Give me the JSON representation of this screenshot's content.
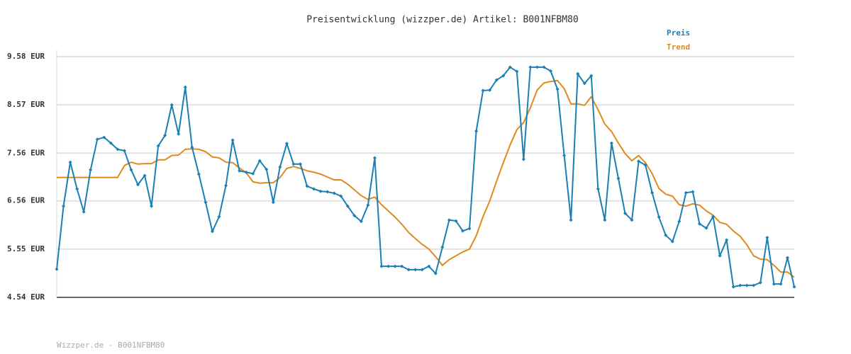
{
  "chart_data": {
    "type": "line",
    "title": "Preisentwicklung (wizzper.de) Artikel: B001NFBM80",
    "footer": "Wizzper.de - B001NFBM80",
    "ylim": [
      4.54,
      9.58
    ],
    "yticks": [
      {
        "value": 4.54,
        "label": "4.54 EUR"
      },
      {
        "value": 5.55,
        "label": "5.55 EUR"
      },
      {
        "value": 6.56,
        "label": "6.56 EUR"
      },
      {
        "value": 7.56,
        "label": "7.56 EUR"
      },
      {
        "value": 8.57,
        "label": "8.57 EUR"
      },
      {
        "value": 9.58,
        "label": "9.58 EUR"
      }
    ],
    "grid": true,
    "legend": "top-right",
    "series": [
      {
        "name": "Preis",
        "color": "#1a7fb5",
        "markers": true,
        "values": [
          5.13,
          6.45,
          7.37,
          6.81,
          6.33,
          7.21,
          7.85,
          7.89,
          7.77,
          7.64,
          7.61,
          7.21,
          6.9,
          7.09,
          6.45,
          7.71,
          7.93,
          8.57,
          7.96,
          8.94,
          7.68,
          7.12,
          6.53,
          5.92,
          6.23,
          6.88,
          7.83,
          7.19,
          7.16,
          7.13,
          7.4,
          7.22,
          6.53,
          7.27,
          7.76,
          7.33,
          7.33,
          6.87,
          6.81,
          6.76,
          6.75,
          6.72,
          6.66,
          6.45,
          6.25,
          6.13,
          6.47,
          7.46,
          5.19,
          5.19,
          5.19,
          5.19,
          5.12,
          5.12,
          5.12,
          5.19,
          5.04,
          5.59,
          6.16,
          6.14,
          5.93,
          5.98,
          8.02,
          8.87,
          8.88,
          9.09,
          9.18,
          9.36,
          9.27,
          7.43,
          9.36,
          9.36,
          9.36,
          9.28,
          8.9,
          7.51,
          6.16,
          9.22,
          9.02,
          9.18,
          6.81,
          6.16,
          7.77,
          7.03,
          6.3,
          6.16,
          7.39,
          7.31,
          6.73,
          6.22,
          5.84,
          5.71,
          6.13,
          6.73,
          6.75,
          6.08,
          5.99,
          6.23,
          5.41,
          5.74,
          4.76,
          4.79,
          4.79,
          4.79,
          4.85,
          5.79,
          4.82,
          4.82,
          5.37,
          4.76
        ]
      },
      {
        "name": "Trend",
        "color": "#e08a1e",
        "markers": false,
        "values": [
          7.05,
          7.05,
          7.05,
          7.05,
          7.05,
          7.05,
          7.05,
          7.05,
          7.05,
          7.05,
          7.3,
          7.37,
          7.33,
          7.34,
          7.34,
          7.42,
          7.42,
          7.51,
          7.52,
          7.64,
          7.65,
          7.64,
          7.59,
          7.48,
          7.46,
          7.37,
          7.36,
          7.25,
          7.15,
          6.96,
          6.93,
          6.94,
          6.94,
          7.05,
          7.24,
          7.28,
          7.24,
          7.19,
          7.16,
          7.12,
          7.06,
          7.0,
          7.0,
          6.91,
          6.79,
          6.67,
          6.59,
          6.64,
          6.48,
          6.35,
          6.22,
          6.07,
          5.9,
          5.77,
          5.65,
          5.55,
          5.39,
          5.21,
          5.33,
          5.41,
          5.49,
          5.55,
          5.83,
          6.23,
          6.56,
          6.97,
          7.36,
          7.73,
          8.05,
          8.2,
          8.51,
          8.88,
          9.03,
          9.06,
          9.08,
          8.91,
          8.59,
          8.59,
          8.56,
          8.74,
          8.47,
          8.17,
          8.01,
          7.77,
          7.55,
          7.4,
          7.51,
          7.36,
          7.13,
          6.82,
          6.7,
          6.66,
          6.48,
          6.45,
          6.5,
          6.47,
          6.35,
          6.26,
          6.11,
          6.07,
          5.93,
          5.82,
          5.64,
          5.41,
          5.34,
          5.33,
          5.21,
          5.07,
          5.07,
          4.96
        ]
      }
    ]
  }
}
